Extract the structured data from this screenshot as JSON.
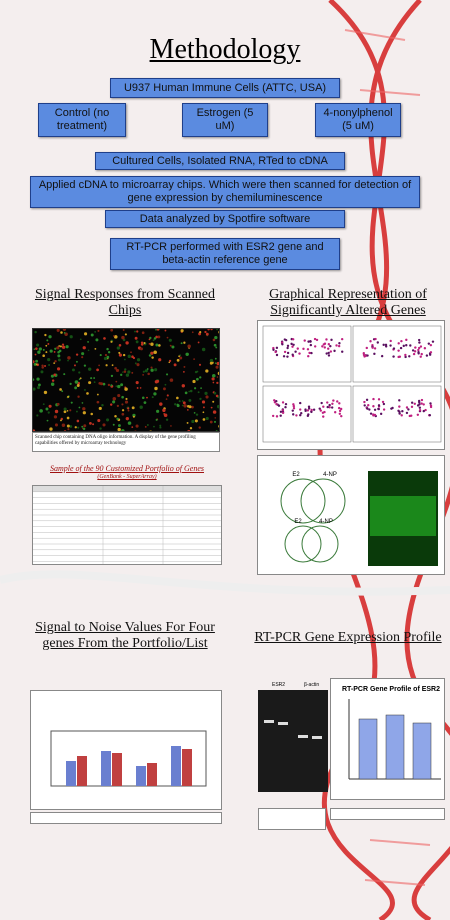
{
  "title": "Methodology",
  "flow": {
    "source": "U937 Human Immune Cells (ATTC, USA)",
    "treatments": [
      "Control (no treatment)",
      "Estrogen (5 uM)",
      "4-nonylphenol (5 uM)"
    ],
    "steps": [
      "Cultured Cells, Isolated RNA, RTed to cDNA",
      "Applied cDNA to microarray chips. Which were then scanned for detection of gene expression by chemiluminescence",
      "Data analyzed by Spotfire software",
      "RT-PCR performed with ESR2 gene and beta-actin reference gene"
    ]
  },
  "sections": {
    "signal": {
      "heading": "Signal Responses from Scanned Chips",
      "caption": "Scanned chip containing DNA oligo information. A display of the gene profiling capabilities offered by microarray technology",
      "table_title": "Sample of the 90 Customized Portfolio of Genes",
      "table_source": "(GenBank - SuperArray)"
    },
    "graphical": {
      "heading": "Graphical Representation of Significantly Altered Genes",
      "venn_labels": [
        "E2",
        "4-NP",
        "E2",
        "4-NP"
      ]
    },
    "noise": {
      "heading": "Signal to Noise Values For Four genes From the Portfolio/List"
    },
    "rtpcr": {
      "heading": "RT-PCR Gene Expression Profile",
      "chart_title": "RT-PCR Gene Profile of ESR2",
      "gel_labels": [
        "ESR2",
        "β-actin"
      ]
    }
  }
}
